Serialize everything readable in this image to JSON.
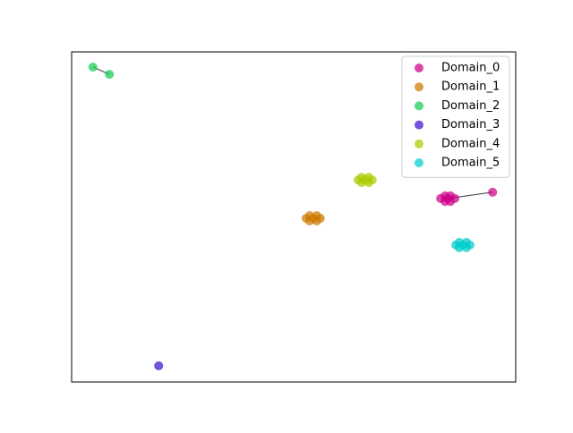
{
  "chart_data": {
    "type": "scatter",
    "xlim": [
      0,
      100
    ],
    "ylim": [
      0,
      100
    ],
    "grid": false,
    "legend": "upper right",
    "series": [
      {
        "name": "Domain_0",
        "color": "#cc0088",
        "connect": true,
        "x": [
          84.7,
          83.1,
          84.1,
          85.3,
          86.3,
          85.3,
          84.1,
          94.8
        ],
        "y": [
          55.6,
          55.6,
          56.4,
          56.4,
          55.6,
          54.7,
          54.7,
          57.5
        ]
      },
      {
        "name": "Domain_1",
        "color": "#cc7a00",
        "connect": false,
        "x": [
          52.8,
          53.6,
          55.2,
          56.0,
          55.2,
          53.6,
          54.4
        ],
        "y": [
          49.6,
          50.4,
          50.4,
          49.6,
          48.8,
          48.8,
          49.6
        ]
      },
      {
        "name": "Domain_2",
        "color": "#14cc52",
        "connect": true,
        "x": [
          4.8,
          8.5
        ],
        "y": [
          95.4,
          93.2
        ]
      },
      {
        "name": "Domain_3",
        "color": "#3c14cc",
        "connect": false,
        "x": [
          19.6
        ],
        "y": [
          4.9
        ]
      },
      {
        "name": "Domain_4",
        "color": "#a8cc00",
        "connect": false,
        "x": [
          64.5,
          65.3,
          66.9,
          67.7,
          66.9,
          65.3,
          66.1
        ],
        "y": [
          61.2,
          62.0,
          62.0,
          61.2,
          60.4,
          60.4,
          61.2
        ]
      },
      {
        "name": "Domain_5",
        "color": "#00cccc",
        "connect": false,
        "x": [
          86.5,
          87.3,
          88.9,
          89.7,
          88.9,
          87.3,
          88.1
        ],
        "y": [
          41.5,
          42.3,
          42.3,
          41.5,
          40.7,
          40.7,
          41.5
        ]
      }
    ]
  }
}
